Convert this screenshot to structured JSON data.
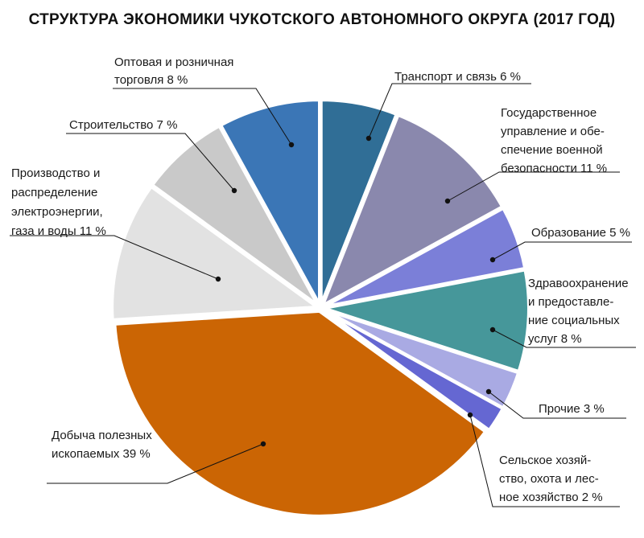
{
  "chart_data": {
    "type": "pie",
    "title": "СТРУКТУРА ЭКОНОМИКИ ЧУКОТСКОГО АВТОНОМНОГО ОКРУГА (2017 ГОД)",
    "slices": [
      {
        "id": "transport",
        "label_lines": [
          "Транспорт и связь 6 %"
        ],
        "value": 6,
        "color": "#306e96"
      },
      {
        "id": "gov",
        "label_lines": [
          "Государственное",
          "управление и обе-",
          "спечение военной",
          "безопасности 11 %"
        ],
        "value": 11,
        "color": "#8a88ad"
      },
      {
        "id": "edu",
        "label_lines": [
          "Образование 5 %"
        ],
        "value": 5,
        "color": "#7b7fd8"
      },
      {
        "id": "health",
        "label_lines": [
          "Здравоохранение",
          "и предоставле-",
          "ние социальных",
          "услуг 8 %"
        ],
        "value": 8,
        "color": "#46979a"
      },
      {
        "id": "other",
        "label_lines": [
          "Прочие 3 %"
        ],
        "value": 3,
        "color": "#a9aae3"
      },
      {
        "id": "agro",
        "label_lines": [
          "Сельское хозяй-",
          "ство, охота и лес-",
          "ное хозяйство 2 %"
        ],
        "value": 2,
        "color": "#6567d2"
      },
      {
        "id": "mining",
        "label_lines": [
          "Добыча полезных",
          "ископаемых 39 %"
        ],
        "value": 39,
        "color": "#cb6504"
      },
      {
        "id": "energy",
        "label_lines": [
          "Производство и",
          "распределение",
          "электроэнергии,",
          "газа и воды 11 %"
        ],
        "value": 11,
        "color": "#e2e2e2"
      },
      {
        "id": "construction",
        "label_lines": [
          "Строительство 7 %"
        ],
        "value": 7,
        "color": "#c9c9c9"
      },
      {
        "id": "trade",
        "label_lines": [
          "Оптовая и розничная",
          "торговля 8 %"
        ],
        "value": 8,
        "color": "#3b76b6"
      }
    ]
  }
}
